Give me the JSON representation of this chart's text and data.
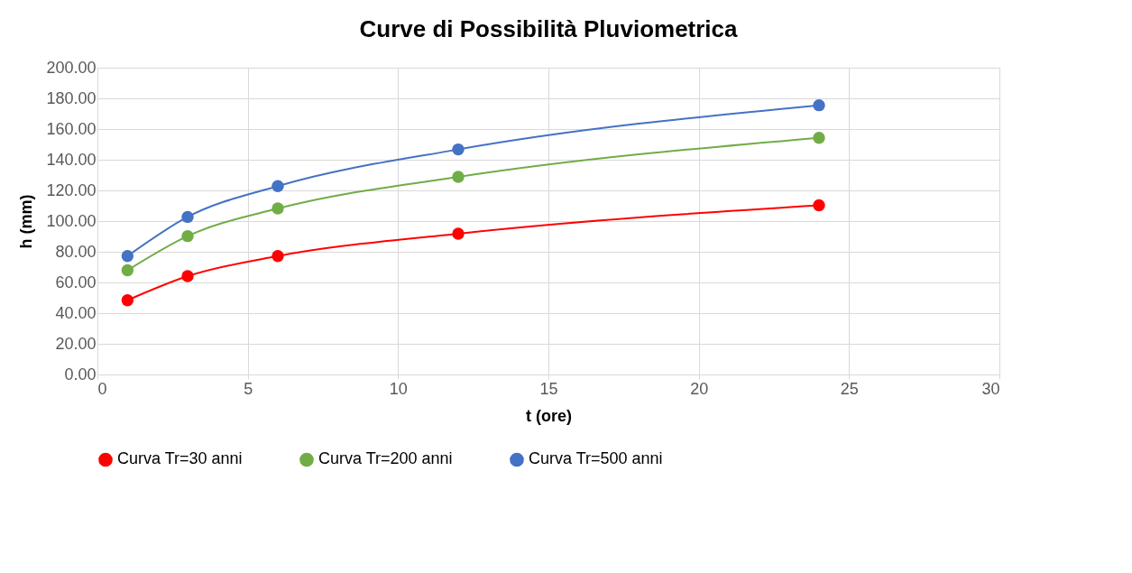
{
  "chart_data": {
    "type": "line",
    "title": "Curve di Possibilità Pluviometrica",
    "xlabel": "t (ore)",
    "ylabel": "h (mm)",
    "x": [
      1,
      3,
      6,
      12,
      24
    ],
    "series": [
      {
        "name": "Curva Tr=30 anni",
        "color": "#ff0000",
        "values": [
          48.4,
          64.1,
          77.2,
          91.8,
          110.3
        ]
      },
      {
        "name": "Curva Tr=200 anni",
        "color": "#70ad47",
        "values": [
          67.9,
          90.2,
          108.2,
          128.8,
          154.3
        ]
      },
      {
        "name": "Curva Tr=500 anni",
        "color": "#4472c4",
        "values": [
          77.2,
          102.7,
          122.8,
          146.7,
          175.5
        ]
      }
    ],
    "xlim": [
      0,
      30
    ],
    "xticks": [
      0,
      5,
      10,
      15,
      20,
      25,
      30
    ],
    "ylim": [
      0,
      200
    ],
    "yticks": [
      {
        "value": 0,
        "label": "0.00"
      },
      {
        "value": 20,
        "label": "20.00"
      },
      {
        "value": 40,
        "label": "40.00"
      },
      {
        "value": 60,
        "label": "60.00"
      },
      {
        "value": 80,
        "label": "80.00"
      },
      {
        "value": 100,
        "label": "100.00"
      },
      {
        "value": 120,
        "label": "120.00"
      },
      {
        "value": 140,
        "label": "140.00"
      },
      {
        "value": 160,
        "label": "160.00"
      },
      {
        "value": 180,
        "label": "180.00"
      },
      {
        "value": 200,
        "label": "200.00"
      }
    ],
    "grid": true,
    "legend": "bottom",
    "marker": "circle",
    "line_style": "solid"
  }
}
